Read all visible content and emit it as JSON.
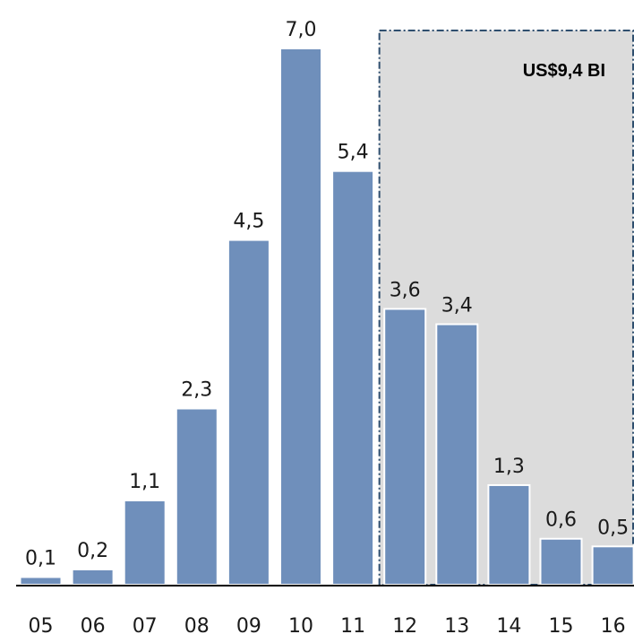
{
  "chart_data": {
    "type": "bar",
    "categories": [
      "05",
      "06",
      "07",
      "08",
      "09",
      "10",
      "11",
      "12",
      "13",
      "14",
      "15",
      "16"
    ],
    "values": [
      0.1,
      0.2,
      1.1,
      2.3,
      4.5,
      7.0,
      5.4,
      3.6,
      3.4,
      1.3,
      0.6,
      0.5
    ],
    "value_labels": [
      "0,1",
      "0,2",
      "1,1",
      "2,3",
      "4,5",
      "7,0",
      "5,4",
      "3,6",
      "3,4",
      "1,3",
      "0,6",
      "0,5"
    ],
    "title": "",
    "xlabel": "",
    "ylabel": "",
    "ylim": [
      0,
      7.0
    ],
    "grid": false,
    "bar_color": "#6f8fbb",
    "highlight": {
      "from_category": "12",
      "to_category": "16",
      "fill_color": "#dcdcdc",
      "border_color": "#2f4f6f",
      "label": "US$9,4 BI"
    }
  }
}
